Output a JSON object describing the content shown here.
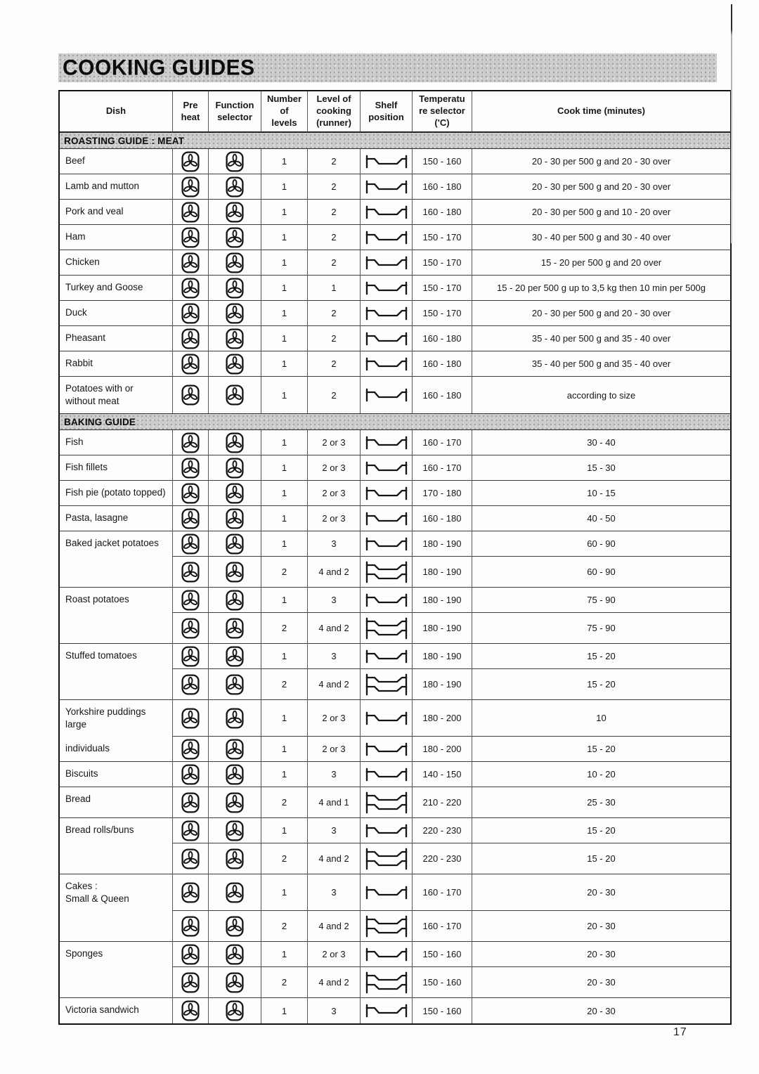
{
  "page": {
    "title": "COOKING GUIDES",
    "page_number": "17"
  },
  "icons": {
    "preheat": "fan-icon",
    "function": "fan-icon",
    "shelf_single": "single-shelf-icon",
    "shelf_double": "double-shelf-icon"
  },
  "table": {
    "headers": [
      {
        "lines": [
          "Dish"
        ]
      },
      {
        "lines": [
          "Pre",
          "heat"
        ]
      },
      {
        "lines": [
          "Function",
          "selector"
        ]
      },
      {
        "lines": [
          "Number",
          "of",
          "levels"
        ]
      },
      {
        "lines": [
          "Level of",
          "cooking",
          "(runner)"
        ]
      },
      {
        "lines": [
          "Shelf",
          "position"
        ]
      },
      {
        "lines": [
          "Temperatu",
          "re selector",
          "('C)"
        ]
      },
      {
        "lines": [
          "Cook time (minutes)"
        ]
      }
    ],
    "sections": [
      {
        "name": "ROASTING GUIDE : MEAT",
        "rows": [
          {
            "dish_lines": [
              "Beef"
            ],
            "new_dish": true,
            "levels": "1",
            "runner": "2",
            "shelf": "single",
            "temp": "150 - 160",
            "time": "20 - 30 per 500 g and 20 - 30 over"
          },
          {
            "dish_lines": [
              "Lamb and mutton"
            ],
            "new_dish": true,
            "levels": "1",
            "runner": "2",
            "shelf": "single",
            "temp": "160 - 180",
            "time": "20 - 30 per 500 g and 20 - 30 over"
          },
          {
            "dish_lines": [
              "Pork and veal"
            ],
            "new_dish": true,
            "levels": "1",
            "runner": "2",
            "shelf": "single",
            "temp": "160 - 180",
            "time": "20 - 30 per 500 g and 10 - 20 over"
          },
          {
            "dish_lines": [
              "Ham"
            ],
            "new_dish": true,
            "levels": "1",
            "runner": "2",
            "shelf": "single",
            "temp": "150 - 170",
            "time": "30 - 40 per 500 g and 30 - 40 over"
          },
          {
            "dish_lines": [
              "Chicken"
            ],
            "new_dish": true,
            "levels": "1",
            "runner": "2",
            "shelf": "single",
            "temp": "150 - 170",
            "time": "15 - 20 per 500 g and 20 over"
          },
          {
            "dish_lines": [
              "Turkey and Goose"
            ],
            "new_dish": true,
            "levels": "1",
            "runner": "1",
            "shelf": "single",
            "temp": "150 - 170",
            "time": "15 - 20 per 500 g up to 3,5 kg then 10 min per 500g"
          },
          {
            "dish_lines": [
              "Duck"
            ],
            "new_dish": true,
            "levels": "1",
            "runner": "2",
            "shelf": "single",
            "temp": "150 - 170",
            "time": "20 - 30 per 500 g and 20 - 30 over"
          },
          {
            "dish_lines": [
              "Pheasant"
            ],
            "new_dish": true,
            "levels": "1",
            "runner": "2",
            "shelf": "single",
            "temp": "160 - 180",
            "time": "35 - 40 per 500 g and 35 - 40 over"
          },
          {
            "dish_lines": [
              "Rabbit"
            ],
            "new_dish": true,
            "levels": "1",
            "runner": "2",
            "shelf": "single",
            "temp": "160 - 180",
            "time": "35 - 40 per 500 g and 35 - 40 over"
          },
          {
            "dish_lines": [
              "Potatoes with or",
              "without meat"
            ],
            "new_dish": true,
            "levels": "1",
            "runner": "2",
            "shelf": "single",
            "temp": "160 - 180",
            "time": "according to size"
          }
        ]
      },
      {
        "name": "BAKING GUIDE",
        "rows": [
          {
            "dish_lines": [
              "Fish"
            ],
            "new_dish": true,
            "levels": "1",
            "runner": "2 or 3",
            "shelf": "single",
            "temp": "160 - 170",
            "time": "30 - 40"
          },
          {
            "dish_lines": [
              "Fish fillets"
            ],
            "new_dish": true,
            "levels": "1",
            "runner": "2 or 3",
            "shelf": "single",
            "temp": "160 - 170",
            "time": "15 - 30"
          },
          {
            "dish_lines": [
              "Fish pie (potato topped)"
            ],
            "new_dish": true,
            "levels": "1",
            "runner": "2 or 3",
            "shelf": "single",
            "temp": "170 - 180",
            "time": "10 - 15"
          },
          {
            "dish_lines": [
              "Pasta, lasagne"
            ],
            "new_dish": true,
            "levels": "1",
            "runner": "2 or 3",
            "shelf": "single",
            "temp": "160 - 180",
            "time": "40 - 50"
          },
          {
            "dish_lines": [
              "Baked jacket potatoes"
            ],
            "new_dish": true,
            "levels": "1",
            "runner": "3",
            "shelf": "single",
            "temp": "180 - 190",
            "time": "60 - 90"
          },
          {
            "dish_lines": [],
            "new_dish": false,
            "levels": "2",
            "runner": "4 and 2",
            "shelf": "double",
            "temp": "180 - 190",
            "time": "60 - 90"
          },
          {
            "dish_lines": [
              "Roast potatoes"
            ],
            "new_dish": true,
            "levels": "1",
            "runner": "3",
            "shelf": "single",
            "temp": "180 - 190",
            "time": "75 - 90"
          },
          {
            "dish_lines": [],
            "new_dish": false,
            "levels": "2",
            "runner": "4 and 2",
            "shelf": "double",
            "temp": "180 - 190",
            "time": "75 - 90"
          },
          {
            "dish_lines": [
              "Stuffed tomatoes"
            ],
            "new_dish": true,
            "levels": "1",
            "runner": "3",
            "shelf": "single",
            "temp": "180 - 190",
            "time": "15 - 20"
          },
          {
            "dish_lines": [],
            "new_dish": false,
            "levels": "2",
            "runner": "4 and 2",
            "shelf": "double",
            "temp": "180 - 190",
            "time": "15 - 20"
          },
          {
            "dish_lines": [
              "Yorkshire  puddings",
              "large"
            ],
            "new_dish": true,
            "levels": "1",
            "runner": "2 or 3",
            "shelf": "single",
            "temp": "180 - 200",
            "time": "10"
          },
          {
            "dish_lines": [
              "individuals"
            ],
            "new_dish": false,
            "levels": "1",
            "runner": "2 or 3",
            "shelf": "single",
            "temp": "180 - 200",
            "time": "15 - 20"
          },
          {
            "dish_lines": [
              "Biscuits"
            ],
            "new_dish": true,
            "levels": "1",
            "runner": "3",
            "shelf": "single",
            "temp": "140 - 150",
            "time": "10 - 20"
          },
          {
            "dish_lines": [
              "Bread"
            ],
            "new_dish": true,
            "levels": "2",
            "runner": "4 and 1",
            "shelf": "double",
            "temp": "210 - 220",
            "time": "25 - 30"
          },
          {
            "dish_lines": [
              "Bread rolls/buns"
            ],
            "new_dish": true,
            "levels": "1",
            "runner": "3",
            "shelf": "single",
            "temp": "220 - 230",
            "time": "15 - 20"
          },
          {
            "dish_lines": [],
            "new_dish": false,
            "levels": "2",
            "runner": "4 and 2",
            "shelf": "double",
            "temp": "220 - 230",
            "time": "15 - 20"
          },
          {
            "dish_lines": [
              "Cakes :",
              "Small & Queen"
            ],
            "new_dish": true,
            "levels": "1",
            "runner": "3",
            "shelf": "single",
            "temp": "160 - 170",
            "time": "20 - 30"
          },
          {
            "dish_lines": [],
            "new_dish": false,
            "levels": "2",
            "runner": "4 and 2",
            "shelf": "double",
            "temp": "160 - 170",
            "time": "20 - 30"
          },
          {
            "dish_lines": [
              "Sponges"
            ],
            "new_dish": true,
            "levels": "1",
            "runner": "2 or 3",
            "shelf": "single",
            "temp": "150 - 160",
            "time": "20 - 30"
          },
          {
            "dish_lines": [],
            "new_dish": false,
            "levels": "2",
            "runner": "4 and 2",
            "shelf": "double",
            "temp": "150 - 160",
            "time": "20 - 30"
          },
          {
            "dish_lines": [
              "Victoria sandwich"
            ],
            "new_dish": true,
            "levels": "1",
            "runner": "3",
            "shelf": "single",
            "temp": "150 - 160",
            "time": "20 - 30"
          }
        ]
      }
    ]
  }
}
